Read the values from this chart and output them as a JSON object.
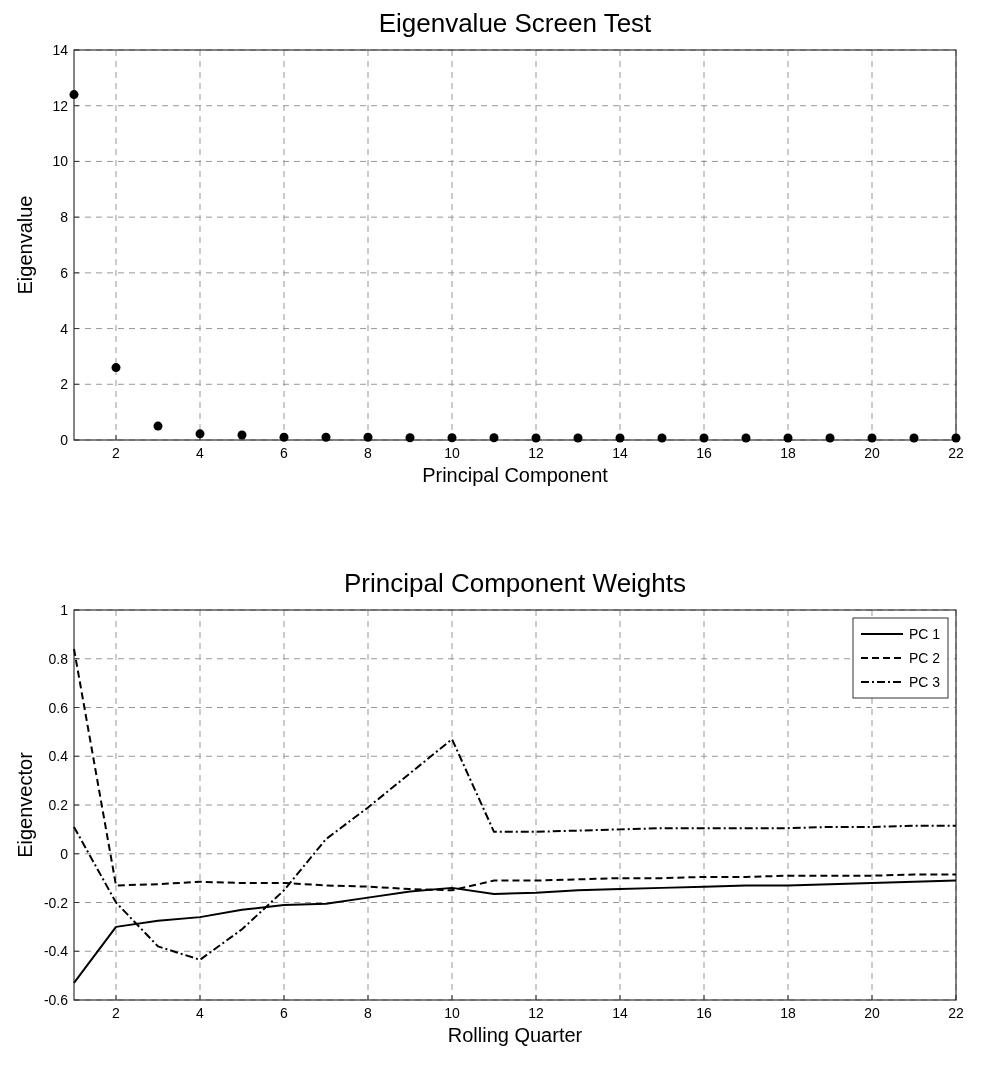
{
  "chart_data": [
    {
      "type": "scatter",
      "title": "Eigenvalue Screen Test",
      "xlabel": "Principal Component",
      "ylabel": "Eigenvalue",
      "x": [
        1,
        2,
        3,
        4,
        5,
        6,
        7,
        8,
        9,
        10,
        11,
        12,
        13,
        14,
        15,
        16,
        17,
        18,
        19,
        20,
        21,
        22
      ],
      "series": [
        {
          "color": "#000000",
          "values": [
            12.4,
            2.6,
            0.5,
            0.22,
            0.18,
            0.1,
            0.1,
            0.1,
            0.08,
            0.08,
            0.08,
            0.07,
            0.07,
            0.07,
            0.07,
            0.07,
            0.07,
            0.07,
            0.07,
            0.07,
            0.07,
            0.07
          ]
        }
      ],
      "xlim": [
        1,
        22
      ],
      "xticks": [
        2,
        4,
        6,
        8,
        10,
        12,
        14,
        16,
        18,
        20,
        22
      ],
      "ylim": [
        0,
        14
      ],
      "yticks": [
        0,
        2,
        4,
        6,
        8,
        10,
        12,
        14
      ],
      "grid": true,
      "marker": "circle",
      "legend": false
    },
    {
      "type": "line",
      "title": "Principal Component Weights",
      "xlabel": "Rolling Quarter",
      "ylabel": "Eigenvector",
      "x": [
        1,
        2,
        3,
        4,
        5,
        6,
        7,
        8,
        9,
        10,
        11,
        12,
        13,
        14,
        15,
        16,
        17,
        18,
        19,
        20,
        21,
        22
      ],
      "series": [
        {
          "name": "PC 1",
          "color": "#000000",
          "line_style": "solid",
          "values": [
            -0.53,
            -0.3,
            -0.275,
            -0.26,
            -0.23,
            -0.21,
            -0.205,
            -0.18,
            -0.155,
            -0.14,
            -0.165,
            -0.16,
            -0.15,
            -0.145,
            -0.14,
            -0.135,
            -0.13,
            -0.13,
            -0.125,
            -0.12,
            -0.115,
            -0.11
          ]
        },
        {
          "name": "PC 2",
          "color": "#000000",
          "line_style": "dashed",
          "values": [
            0.84,
            -0.13,
            -0.125,
            -0.115,
            -0.12,
            -0.12,
            -0.13,
            -0.135,
            -0.145,
            -0.15,
            -0.11,
            -0.11,
            -0.105,
            -0.1,
            -0.1,
            -0.095,
            -0.095,
            -0.09,
            -0.09,
            -0.09,
            -0.085,
            -0.085
          ]
        },
        {
          "name": "PC 3",
          "color": "#000000",
          "line_style": "dashdot",
          "values": [
            0.11,
            -0.2,
            -0.38,
            -0.435,
            -0.31,
            -0.15,
            0.06,
            0.19,
            0.33,
            0.47,
            0.09,
            0.09,
            0.095,
            0.1,
            0.105,
            0.105,
            0.105,
            0.105,
            0.11,
            0.11,
            0.115,
            0.115
          ]
        }
      ],
      "xlim": [
        1,
        22
      ],
      "xticks": [
        2,
        4,
        6,
        8,
        10,
        12,
        14,
        16,
        18,
        20,
        22
      ],
      "ylim": [
        -0.6,
        1
      ],
      "yticks": [
        -0.6,
        -0.4,
        -0.2,
        0,
        0.2,
        0.4,
        0.6,
        0.8,
        1
      ],
      "grid": true,
      "marker": "none",
      "legend": "top right"
    }
  ]
}
